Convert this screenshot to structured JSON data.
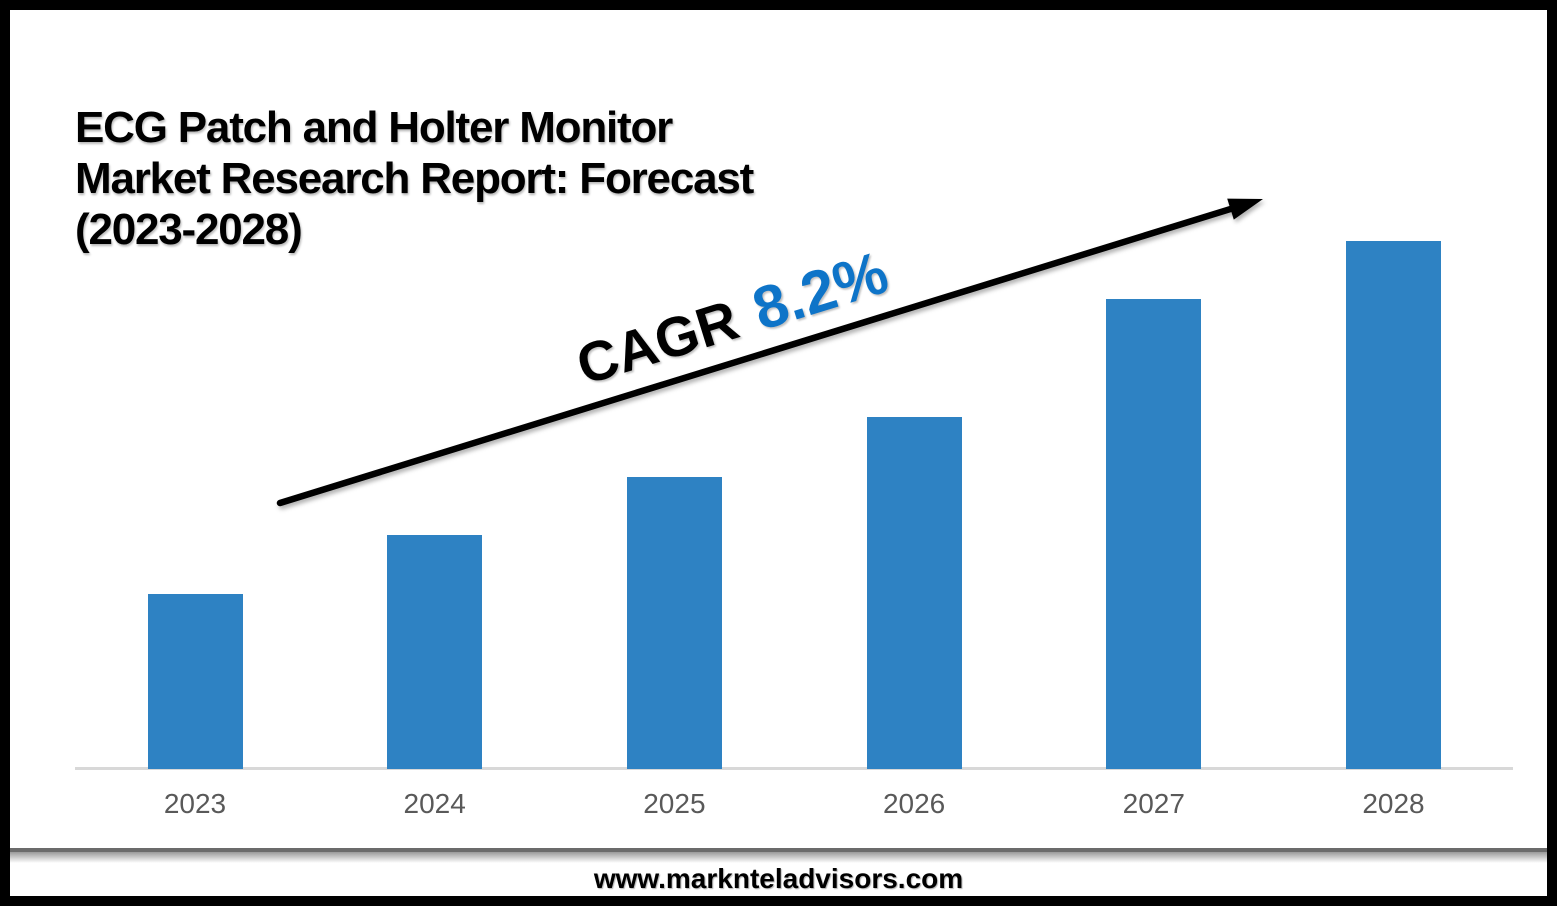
{
  "page": {
    "background_color": "#FFFFFF",
    "frame_border_color": "#000000"
  },
  "title": {
    "lines": [
      "ECG Patch and Holter Monitor",
      "Market Research Report: Forecast",
      "(2023-2028)"
    ]
  },
  "cagr": {
    "label": "CAGR",
    "value": "8.2%",
    "label_color": "#000000",
    "value_color": "#0E74C8"
  },
  "footer": {
    "url": "www.marknteladvisors.com"
  },
  "chart_data": {
    "type": "bar",
    "title": "ECG Patch and Holter Monitor Market Research Report: Forecast (2023-2028)",
    "categories": [
      "2023",
      "2024",
      "2025",
      "2026",
      "2027",
      "2028"
    ],
    "values": [
      175,
      234,
      292,
      352,
      470,
      528
    ],
    "values_unit": "pixel bar heights (chart displays no numeric value axis)",
    "normalized_to_first": [
      1.0,
      1.34,
      1.67,
      2.01,
      2.69,
      3.02
    ],
    "annotation": "CAGR 8.2%",
    "annotation_arrow": "straight black arrow rising left-to-right above bars",
    "bar_color": "#2E82C3",
    "xlabel": "",
    "ylabel": "",
    "grid": false,
    "legend": false,
    "axis_line_color": "#D8D8D8",
    "tick_label_color": "#595959"
  }
}
